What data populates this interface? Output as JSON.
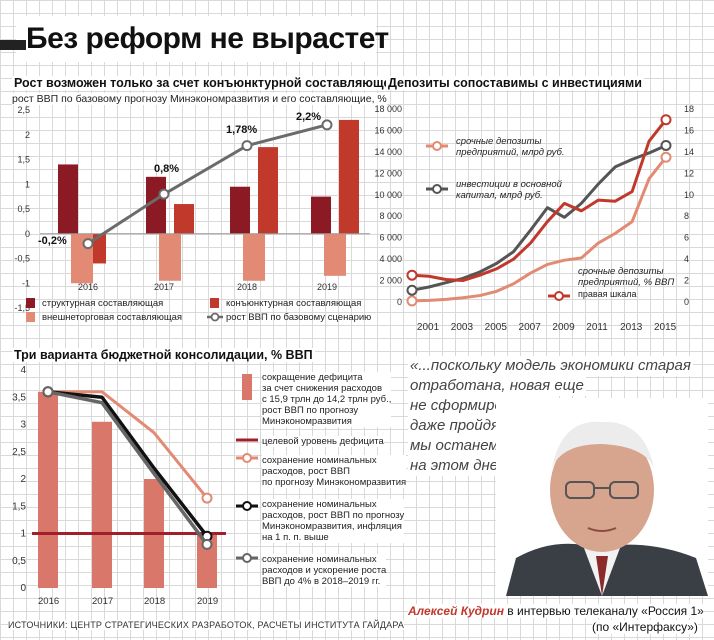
{
  "page": {
    "title": "Без реформ не вырастет",
    "sources": "ИСТОЧНИКИ: ЦЕНТР СТРАТЕГИЧЕСКИХ РАЗРАБОТОК, РАСЧЕТЫ ИНСТИТУТА ГАЙДАРА",
    "quote_lines": [
      "«...поскольку модель экономики старая",
      "отработана, новая еще",
      "не сформировалась,",
      "даже пройдя дно,",
      "мы останемся",
      "на этом дне»."
    ],
    "caption_name": "Алексей Кудрин",
    "caption_rest": " в интервью телеканалу «Россия 1»",
    "caption_line2": "(по «Интерфаксу»)"
  },
  "colors": {
    "dark_red": "#8b1a24",
    "red": "#c0392b",
    "salmon": "#e28a73",
    "light_salmon": "#e5a08c",
    "gray_line": "#666666",
    "black": "#111111"
  },
  "chart_data": [
    {
      "type": "bar",
      "title": "Рост возможен только за счет конъюнктурной составляющей",
      "subtitle": "рост ВВП по базовому прогнозу Минэкономразвития и его составляющие, %",
      "categories": [
        "2016",
        "2017",
        "2018",
        "2019"
      ],
      "ylim": [
        -1.5,
        2.5
      ],
      "yticks": [
        "2,5",
        "2",
        "1,5",
        "1",
        "0,5",
        "0",
        "-0,5",
        "-1",
        "-1,5"
      ],
      "series": [
        {
          "name": "структурная составляющая",
          "values": [
            1.4,
            1.15,
            0.95,
            0.75
          ],
          "color": "#8b1a24"
        },
        {
          "name": "конъюнктурная составляющая",
          "values": [
            -0.6,
            0.6,
            1.75,
            2.3
          ],
          "color": "#c0392b"
        },
        {
          "name": "внешнеторговая составляющая",
          "values": [
            -1.0,
            -0.95,
            -0.95,
            -0.85
          ],
          "color": "#e28a73"
        }
      ],
      "line": {
        "name": "рост ВВП по базовому сценарию",
        "values": [
          -0.2,
          0.8,
          1.78,
          2.2
        ],
        "labels": [
          "-0,2%",
          "0,8%",
          "1,78%",
          "2,2%"
        ]
      },
      "grid": true
    },
    {
      "type": "line",
      "title": "Депозиты сопоставимы с инвестициями",
      "x": [
        2000,
        2001,
        2002,
        2003,
        2004,
        2005,
        2006,
        2007,
        2008,
        2009,
        2010,
        2011,
        2012,
        2013,
        2014,
        2015
      ],
      "xticks": [
        "2001",
        "2003",
        "2005",
        "2007",
        "2009",
        "2011",
        "2013",
        "2015"
      ],
      "ylim_left": [
        0,
        18000
      ],
      "yticks_left": [
        "18 000",
        "16 000",
        "14 000",
        "12 000",
        "10 000",
        "8 000",
        "6 000",
        "4 000",
        "2 000",
        "0"
      ],
      "ylim_right": [
        0,
        18
      ],
      "yticks_right": [
        "18",
        "16",
        "14",
        "12",
        "10",
        "8",
        "6",
        "4",
        "2",
        "0"
      ],
      "series": [
        {
          "name": "срочные депозиты предприятий, млрд руб.",
          "axis": "left",
          "values": [
            100,
            150,
            250,
            400,
            600,
            1000,
            1700,
            2700,
            3500,
            3900,
            4100,
            5500,
            6400,
            7500,
            11500,
            13500
          ],
          "color": "#e28a73"
        },
        {
          "name": "инвестиции в основной капитал, млрд руб.",
          "axis": "left",
          "values": [
            1100,
            1400,
            1800,
            2200,
            2800,
            3600,
            4700,
            6700,
            8800,
            7900,
            9200,
            11000,
            12600,
            13300,
            13900,
            14600
          ],
          "color": "#555555"
        },
        {
          "name": "срочные депозиты предприятий, % ВВП",
          "axis": "right",
          "values": [
            2.5,
            2.4,
            2.1,
            2.0,
            2.5,
            3.1,
            4.0,
            5.5,
            7.5,
            9.2,
            8.5,
            9.5,
            9.4,
            10.3,
            15.0,
            17.0
          ],
          "color": "#c0392b"
        }
      ],
      "annotations": [
        "срочные депозиты предприятий, млрд руб.",
        "инвестиции в основной капитал, млрд руб.",
        "срочные депозиты предприятий, % ВВП",
        "правая шкала"
      ],
      "grid": true
    },
    {
      "type": "bar",
      "title": "Три варианта бюджетной консолидации, % ВВП",
      "categories": [
        "2016",
        "2017",
        "2018",
        "2019"
      ],
      "ylim": [
        0,
        4
      ],
      "yticks": [
        "4",
        "3,5",
        "3",
        "2,5",
        "2",
        "1,5",
        "1",
        "0,5",
        "0"
      ],
      "bars": {
        "name": "сокращение дефицита за счет снижения расходов с 15,9 трлн до 14,2 трлн руб., рост ВВП по прогнозу Минэкономразвития",
        "values": [
          3.6,
          3.05,
          2.0,
          1.0
        ]
      },
      "target_line": {
        "name": "целевой уровень дефицита",
        "value": 1.0
      },
      "lines": [
        {
          "name": "сохранение номинальных расходов, рост ВВП по прогнозу Минэкономразвития",
          "values": [
            3.6,
            3.6,
            2.85,
            1.65
          ],
          "color": "#e28a73"
        },
        {
          "name": "сохранение номинальных расходов, рост ВВП по прогнозу Минэкономразвития, инфляция на 1 п. п. выше",
          "values": [
            3.6,
            3.5,
            2.2,
            0.95
          ],
          "color": "#111111"
        },
        {
          "name": "сохранение номинальных расходов и ускорение роста ВВП до 4% в 2018–2019 гг.",
          "values": [
            3.6,
            3.4,
            2.1,
            0.8
          ],
          "color": "#666666"
        }
      ],
      "legend": [
        "сокращение дефицита\nза счет снижения расходов\nс 15,9 трлн до 14,2 трлн руб.,\nрост ВВП по прогнозу\nМинэкономразвития",
        "целевой уровень дефицита",
        "сохранение номинальных\nрасходов, рост ВВП\nпо прогнозу Минэкономразвития",
        "сохранение номинальных\nрасходов, рост ВВП по прогнозу\nМинэкономразвития, инфляция\nна 1 п. п. выше",
        "сохранение номинальных\nрасходов и ускорение роста\nВВП до 4% в 2018–2019 гг."
      ],
      "grid": true
    }
  ]
}
